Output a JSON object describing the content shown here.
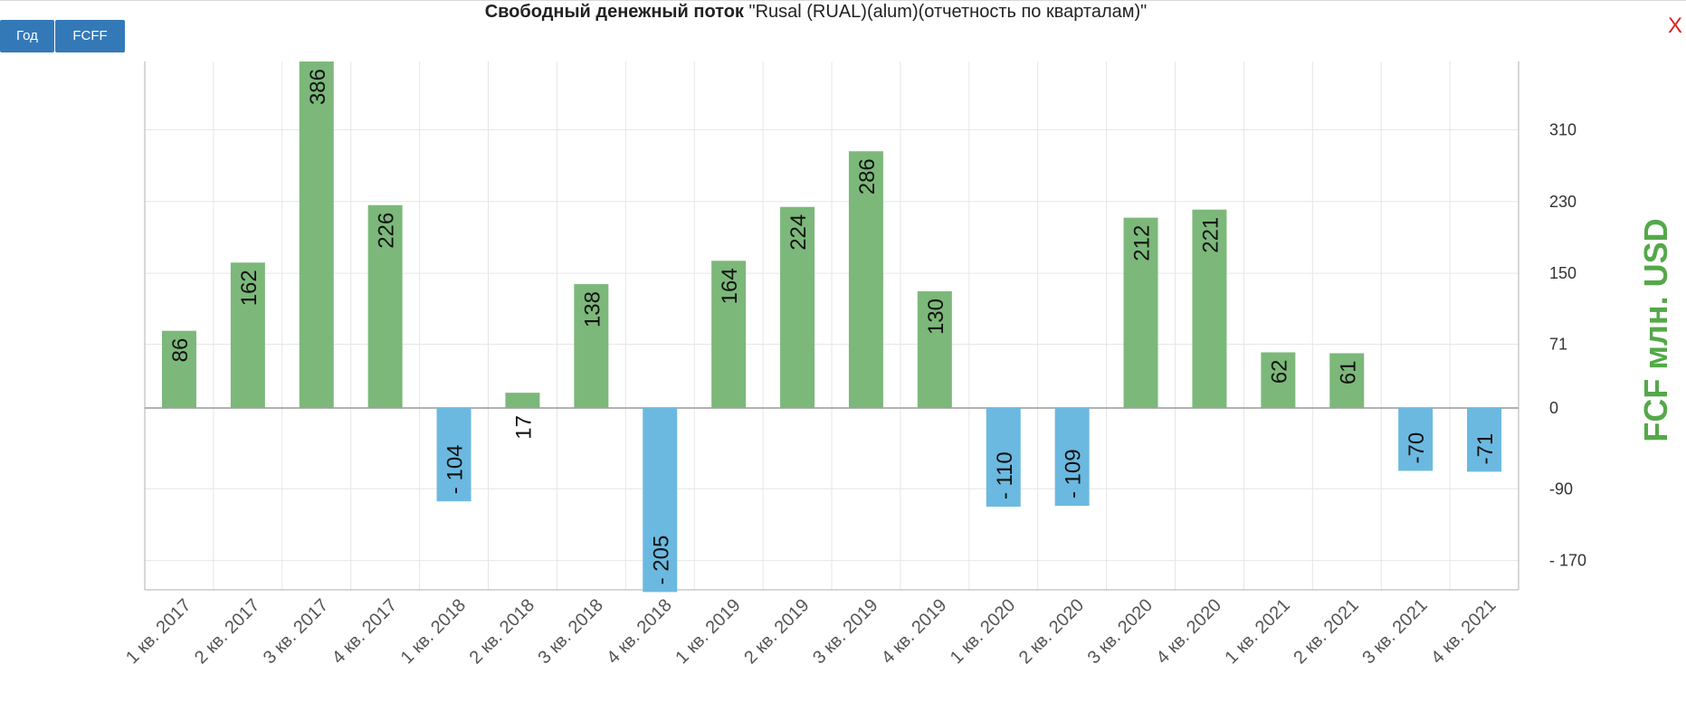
{
  "header": {
    "title_bold": "Свободный денежный поток",
    "title_rest": " \"Rusal (RUAL)(alum)(отчетность по кварталам)\""
  },
  "buttons": {
    "year": "Год",
    "fcff": "FCFF"
  },
  "close_label": "X",
  "chart_data": {
    "type": "bar",
    "categories": [
      "1 кв. 2017",
      "2 кв. 2017",
      "3 кв. 2017",
      "4 кв. 2017",
      "1 кв. 2018",
      "2 кв. 2018",
      "3 кв. 2018",
      "4 кв. 2018",
      "1 кв. 2019",
      "2 кв. 2019",
      "3 кв. 2019",
      "4 кв. 2019",
      "1 кв. 2020",
      "2 кв. 2020",
      "3 кв. 2020",
      "4 кв. 2020",
      "1 кв. 2021",
      "2 кв. 2021",
      "3 кв. 2021",
      "4 кв. 2021"
    ],
    "values": [
      86,
      162,
      386,
      226,
      -104,
      17,
      138,
      -205,
      164,
      224,
      286,
      130,
      -110,
      -109,
      212,
      221,
      62,
      61,
      -70,
      -71
    ],
    "data_labels": [
      "86",
      "162",
      "386",
      "226",
      "- 104",
      "17",
      "138",
      "- 205",
      "164",
      "224",
      "286",
      "130",
      "- 110",
      "- 109",
      "212",
      "221",
      "62",
      "61",
      "-70",
      "-71"
    ],
    "ylabel": "FCF млн. USD",
    "yticks": [
      310,
      230,
      150,
      71,
      0,
      -90,
      -170
    ],
    "ytick_labels": [
      "310",
      "230",
      "150",
      "71",
      "0",
      "-90",
      "- 170"
    ],
    "ylim": [
      -205,
      386
    ],
    "grid": true,
    "legend": "none",
    "colors": {
      "positive": "#7cb87a",
      "negative": "#6bb9e0",
      "ylabel": "#55a84a"
    }
  }
}
